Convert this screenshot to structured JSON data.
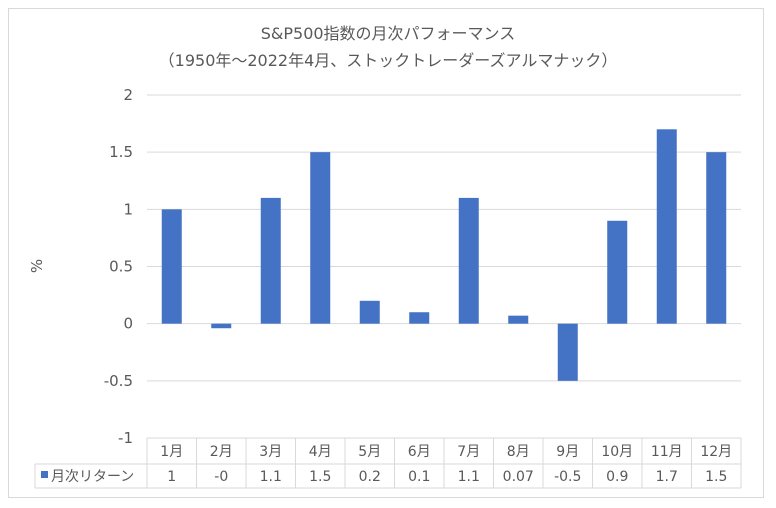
{
  "chart_data": {
    "type": "bar",
    "title": "S&P500指数の月次パフォーマンス",
    "subtitle": "（1950年～2022年4月、ストックトレーダーズアルマナック）",
    "ylabel": "%",
    "xlabel": "",
    "ylim": [
      -1,
      2
    ],
    "yticks": [
      "2",
      "1.5",
      "1",
      "0.5",
      "0",
      "-0.5",
      "-1"
    ],
    "grid": true,
    "categories": [
      "1月",
      "2月",
      "3月",
      "4月",
      "5月",
      "6月",
      "7月",
      "8月",
      "9月",
      "10月",
      "11月",
      "12月"
    ],
    "series": [
      {
        "name": "月次リターン",
        "values": [
          1,
          -0.04,
          1.1,
          1.5,
          0.2,
          0.1,
          1.1,
          0.07,
          -0.5,
          0.9,
          1.7,
          1.5
        ],
        "table_labels": [
          "1",
          "-0",
          "1.1",
          "1.5",
          "0.2",
          "0.1",
          "1.1",
          "0.07",
          "-0.5",
          "0.9",
          "1.7",
          "1.5"
        ]
      }
    ],
    "legend": "data-table",
    "bar_color": "#4472c4"
  }
}
